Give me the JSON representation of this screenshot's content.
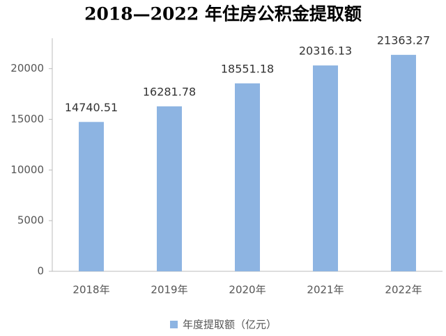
{
  "chart_data": {
    "type": "bar",
    "title": "2018—2022 年住房公积金提取额",
    "categories": [
      "2018年",
      "2019年",
      "2020年",
      "2021年",
      "2022年"
    ],
    "series": [
      {
        "name": "年度提取额（亿元）",
        "color": "#8db4e2",
        "values": [
          14740.51,
          16281.78,
          18551.18,
          20316.13,
          21363.27
        ]
      }
    ],
    "ylim": [
      0,
      23000
    ],
    "yticks": [
      0,
      5000,
      10000,
      15000,
      20000
    ],
    "data_labels": true
  }
}
